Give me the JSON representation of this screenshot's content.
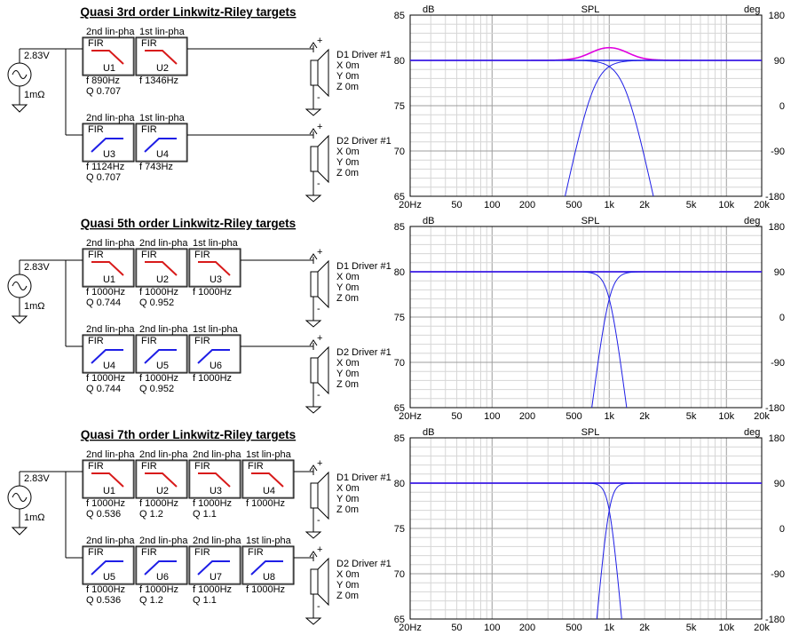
{
  "sections": [
    {
      "title": "Quasi 3rd order Linkwitz-Riley targets",
      "source": {
        "voltage": "2.83V",
        "resistance": "1mΩ"
      },
      "rows": [
        {
          "driver": {
            "name": "D1 Driver #1",
            "x": "X 0m",
            "y": "Y 0m",
            "z": "Z 0m"
          },
          "blocks": [
            {
              "header": "2nd lin-pha",
              "type": "FIR",
              "id": "U1",
              "curve": "lowpass",
              "f": "f  890Hz",
              "q": "Q  0.707"
            },
            {
              "header": "1st lin-pha",
              "type": "FIR",
              "id": "U2",
              "curve": "lowpass",
              "f": "f  1346Hz",
              "q": ""
            }
          ]
        },
        {
          "driver": {
            "name": "D2 Driver #1",
            "x": "X 0m",
            "y": "Y 0m",
            "z": "Z 0m"
          },
          "blocks": [
            {
              "header": "2nd lin-pha",
              "type": "FIR",
              "id": "U3",
              "curve": "highpass",
              "f": "f  1124Hz",
              "q": "Q  0.707"
            },
            {
              "header": "1st lin-pha",
              "type": "FIR",
              "id": "U4",
              "curve": "highpass",
              "f": "f  743Hz",
              "q": ""
            }
          ]
        }
      ],
      "plot": {
        "title": "SPL",
        "left_unit": "dB",
        "right_unit": "deg",
        "lp_fc": 1346,
        "lp_order": 3,
        "hp_fc": 743,
        "hp_order": 3
      }
    },
    {
      "title": "Quasi 5th order Linkwitz-Riley targets",
      "source": {
        "voltage": "2.83V",
        "resistance": "1mΩ"
      },
      "rows": [
        {
          "driver": {
            "name": "D1 Driver #1",
            "x": "X 0m",
            "y": "Y 0m",
            "z": "Z 0m"
          },
          "blocks": [
            {
              "header": "2nd lin-pha",
              "type": "FIR",
              "id": "U1",
              "curve": "lowpass",
              "f": "f  1000Hz",
              "q": "Q  0.744"
            },
            {
              "header": "2nd lin-pha",
              "type": "FIR",
              "id": "U2",
              "curve": "lowpass",
              "f": "f  1000Hz",
              "q": "Q  0.952"
            },
            {
              "header": "1st lin-pha",
              "type": "FIR",
              "id": "U3",
              "curve": "lowpass",
              "f": "f  1000Hz",
              "q": ""
            }
          ]
        },
        {
          "driver": {
            "name": "D2 Driver #1",
            "x": "X 0m",
            "y": "Y 0m",
            "z": "Z 0m"
          },
          "blocks": [
            {
              "header": "2nd lin-pha",
              "type": "FIR",
              "id": "U4",
              "curve": "highpass",
              "f": "f  1000Hz",
              "q": "Q  0.744"
            },
            {
              "header": "2nd lin-pha",
              "type": "FIR",
              "id": "U5",
              "curve": "highpass",
              "f": "f  1000Hz",
              "q": "Q  0.952"
            },
            {
              "header": "1st lin-pha",
              "type": "FIR",
              "id": "U6",
              "curve": "highpass",
              "f": "f  1000Hz",
              "q": ""
            }
          ]
        }
      ],
      "plot": {
        "title": "SPL",
        "left_unit": "dB",
        "right_unit": "deg",
        "lp_fc": 1000,
        "lp_order": 5,
        "hp_fc": 1000,
        "hp_order": 5
      }
    },
    {
      "title": "Quasi 7th order Linkwitz-Riley targets",
      "source": {
        "voltage": "2.83V",
        "resistance": "1mΩ"
      },
      "rows": [
        {
          "driver": {
            "name": "D1 Driver #1",
            "x": "X 0m",
            "y": "Y 0m",
            "z": "Z 0m"
          },
          "blocks": [
            {
              "header": "2nd lin-pha",
              "type": "FIR",
              "id": "U1",
              "curve": "lowpass",
              "f": "f  1000Hz",
              "q": "Q  0.536"
            },
            {
              "header": "2nd lin-pha",
              "type": "FIR",
              "id": "U2",
              "curve": "lowpass",
              "f": "f  1000Hz",
              "q": "Q  1.2"
            },
            {
              "header": "2nd lin-pha",
              "type": "FIR",
              "id": "U3",
              "curve": "lowpass",
              "f": "f  1000Hz",
              "q": "Q  1.1"
            },
            {
              "header": "1st lin-pha",
              "type": "FIR",
              "id": "U4",
              "curve": "lowpass",
              "f": "f  1000Hz",
              "q": ""
            }
          ]
        },
        {
          "driver": {
            "name": "D2 Driver #1",
            "x": "X 0m",
            "y": "Y 0m",
            "z": "Z 0m"
          },
          "blocks": [
            {
              "header": "2nd lin-pha",
              "type": "FIR",
              "id": "U5",
              "curve": "highpass",
              "f": "f  1000Hz",
              "q": "Q  0.536"
            },
            {
              "header": "2nd lin-pha",
              "type": "FIR",
              "id": "U6",
              "curve": "highpass",
              "f": "f  1000Hz",
              "q": "Q  1.2"
            },
            {
              "header": "2nd lin-pha",
              "type": "FIR",
              "id": "U7",
              "curve": "highpass",
              "f": "f  1000Hz",
              "q": "Q  1.1"
            },
            {
              "header": "1st lin-pha",
              "type": "FIR",
              "id": "U8",
              "curve": "highpass",
              "f": "f  1000Hz",
              "q": ""
            }
          ]
        }
      ],
      "plot": {
        "title": "SPL",
        "left_unit": "dB",
        "right_unit": "deg",
        "lp_fc": 1000,
        "lp_order": 7,
        "hp_fc": 1000,
        "hp_order": 7
      }
    }
  ],
  "axes": {
    "x_ticks": [
      {
        "v": 20,
        "t": "20Hz"
      },
      {
        "v": 50,
        "t": "50"
      },
      {
        "v": 100,
        "t": "100"
      },
      {
        "v": 200,
        "t": "200"
      },
      {
        "v": 500,
        "t": "500"
      },
      {
        "v": 1000,
        "t": "1k"
      },
      {
        "v": 2000,
        "t": "2k"
      },
      {
        "v": 5000,
        "t": "5k"
      },
      {
        "v": 10000,
        "t": "10k"
      },
      {
        "v": 20000,
        "t": "20k"
      }
    ],
    "xlim": [
      20,
      20000
    ],
    "y_left_ticks": [
      85,
      80,
      75,
      70,
      65
    ],
    "ylim": [
      65,
      85
    ],
    "y_right_ticks": [
      180,
      90,
      0,
      -90,
      -180
    ]
  },
  "colors": {
    "driver_curve": "#1e1ee6",
    "sum_curve": "#e000e0",
    "filter_lp": "#d81a1a",
    "filter_hp": "#1e1ee6",
    "grid": "#d6d6d6",
    "grid_major": "#9c9c9c"
  }
}
